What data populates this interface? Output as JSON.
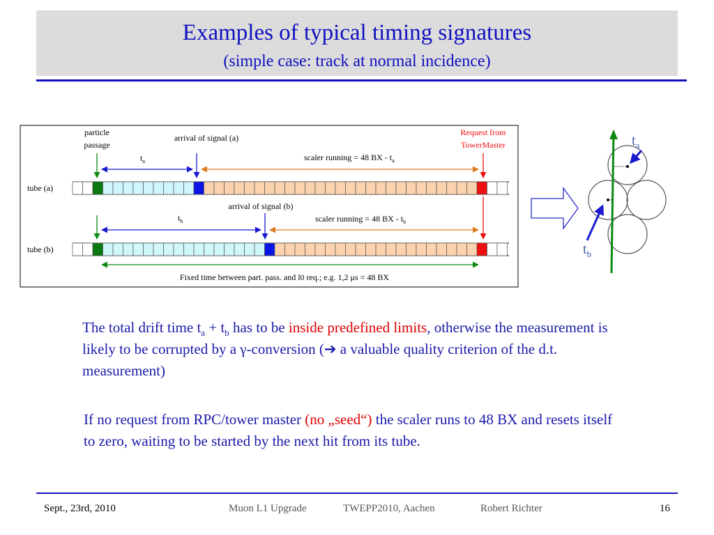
{
  "slide": {
    "title": "Examples of typical timing signatures",
    "subtitle": "(simple case: track at normal incidence)"
  },
  "diagram": {
    "particle_passage": [
      "particle",
      "passage"
    ],
    "arrival_a": "arrival of signal (a)",
    "arrival_b": "arrival of signal (b)",
    "request": [
      "Request from",
      "TowerMaster"
    ],
    "ta": "t",
    "ta_sub": "a",
    "tb": "t",
    "tb_sub": "b",
    "scaler_a": "scaler running = 48 BX - t",
    "scaler_a_sub": "a",
    "scaler_b": "scaler running = 48 BX - t",
    "scaler_b_sub": "b",
    "tube_a": "tube (a)",
    "tube_b": "tube (b)",
    "fixed_time": "Fixed time between part. pass. and l0 req.; e.g. 1,2 μs = 48 BX",
    "tube_cells": {
      "a": {
        "white_lead": 2,
        "green": 1,
        "cyan": 9,
        "blue": 1,
        "orange": 27,
        "red": 1,
        "white_tail": 2
      },
      "b": {
        "white_lead": 2,
        "green": 1,
        "cyan": 16,
        "blue": 1,
        "orange": 20,
        "red": 1,
        "white_tail": 2
      }
    },
    "colors": {
      "green": "#0a7a10",
      "cyan": "#cff6fb",
      "blue": "#0a14e6",
      "orange": "#fcd3ae",
      "red": "#ee1010",
      "arrow_blue": "#1a1ad0",
      "arrow_orange": "#e07a20",
      "arrow_green": "#0a8a10"
    }
  },
  "tubes_fig": {
    "ta": "t",
    "ta_sub": "a",
    "tb": "t",
    "tb_sub": "b"
  },
  "para1": {
    "p1": "The total drift time t",
    "sub_a": "a",
    "p2": " + t",
    "sub_b": "b",
    "p3": " has to be ",
    "red": "inside predefined limits",
    "p4": ", otherwise the measurement is likely to be corrupted by a γ-conversion (➔ a valuable quality criterion of the d.t. measurement)"
  },
  "para2": {
    "p1": "If no request from RPC/tower master ",
    "red": "(no „seed“)",
    "p2": " the scaler runs to 48 BX and resets itself to zero, waiting to be started by the next hit from its tube."
  },
  "footer": {
    "date": "Sept., 23rd, 2010",
    "project": "Muon L1 Upgrade",
    "event": "TWEPP2010, Aachen",
    "author": "Robert Richter",
    "page": "16"
  }
}
